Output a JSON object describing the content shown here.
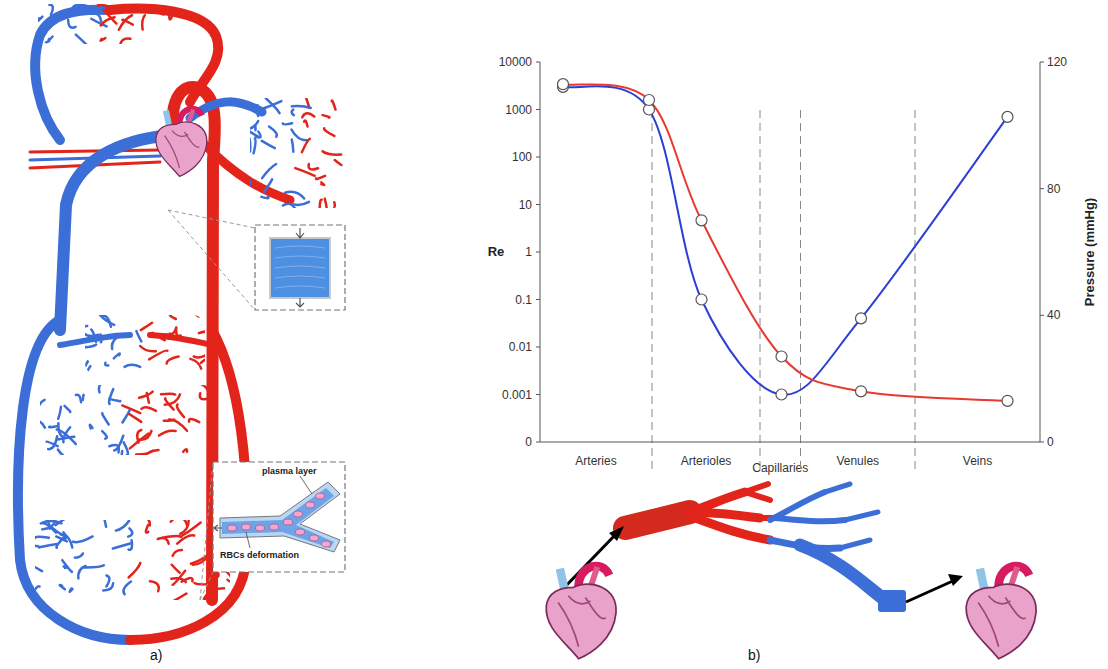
{
  "panel_labels": [
    "a)",
    "b)"
  ],
  "diagram": {
    "callouts": [
      "plasma layer",
      "RBCs deformation"
    ]
  },
  "chart_data": {
    "type": "line",
    "ylabel": "Re",
    "y2label": "Pressure (mmHg)",
    "x": [
      4.6,
      21.8,
      32.3,
      48.3,
      64.2,
      93.5
    ],
    "xlim": [
      0,
      100
    ],
    "regions": [
      {
        "label": "Arteries",
        "start": 0,
        "end": 22.4
      },
      {
        "label": "Arterioles",
        "start": 22.4,
        "end": 44
      },
      {
        "label": "Capillaries",
        "start": 44,
        "end": 52.1
      },
      {
        "label": "Venules",
        "start": 52.1,
        "end": 75
      },
      {
        "label": "Veins",
        "start": 75,
        "end": 100
      }
    ],
    "series": [
      {
        "color": "#2a3fd6",
        "values": [
          3000,
          1000,
          0.1,
          0.001,
          0.04,
          700
        ],
        "marker": "circle",
        "line_style": "solid"
      },
      {
        "color": "#e8382f",
        "values": [
          113,
          108,
          70,
          27,
          16,
          13
        ],
        "axis": "y2",
        "marker": "circle",
        "line_style": "solid"
      }
    ],
    "log": "y",
    "ylim": [
      0.0001,
      10000
    ],
    "yticks": [
      10000,
      1000,
      100,
      10,
      1,
      0.1,
      0.01,
      0.001,
      {
        "value": 0.0001,
        "label": "0"
      }
    ],
    "y2lim": [
      0,
      120
    ],
    "y2ticks": [
      0,
      40,
      80,
      120
    ],
    "grid": false
  }
}
